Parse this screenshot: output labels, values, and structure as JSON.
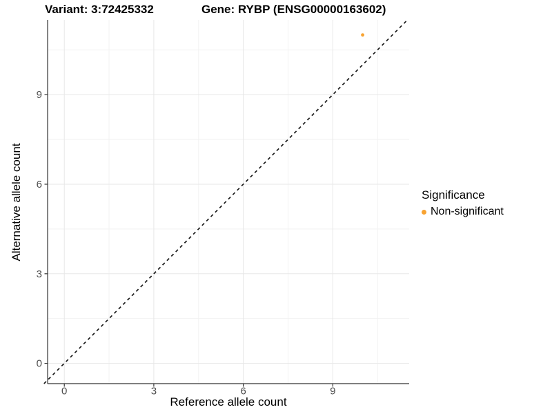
{
  "titles": {
    "variant": "Variant: 3:72425332",
    "gene": "Gene: RYBP (ENSG00000163602)"
  },
  "legend": {
    "title": "Significance",
    "items": [
      {
        "label": "Non-significant",
        "color": "#F8A331",
        "marker": "dot-icon"
      }
    ]
  },
  "chart_data": {
    "type": "scatter",
    "title": "Variant: 3:72425332 — Gene: RYBP (ENSG00000163602)",
    "xlabel": "Reference allele count",
    "ylabel": "Alternative allele count",
    "x_ticks": [
      0,
      3,
      6,
      9
    ],
    "y_ticks": [
      0,
      3,
      6,
      9
    ],
    "x_minor_ticks": [
      1.5,
      4.5,
      7.5,
      10.5
    ],
    "y_minor_ticks": [
      1.5,
      4.5,
      7.5,
      10.5
    ],
    "xlim": [
      -0.56,
      11.56
    ],
    "ylim": [
      -0.68,
      11.5
    ],
    "grid": true,
    "legend_position": "right",
    "series": [
      {
        "name": "Non-significant",
        "color": "#F8A331",
        "points": [
          {
            "x": 10,
            "y": 11
          }
        ]
      }
    ],
    "reference_line": {
      "type": "identity",
      "slope": 1,
      "intercept": 0,
      "style": "dashed",
      "color": "#1a1a1a"
    }
  },
  "colors": {
    "background": "#ffffff",
    "axis_line": "#333333",
    "tick_label": "#4d4d4d",
    "grid_major": "#e7e7e7",
    "grid_minor": "#f2f2f2",
    "point_orange": "#F8A331"
  }
}
